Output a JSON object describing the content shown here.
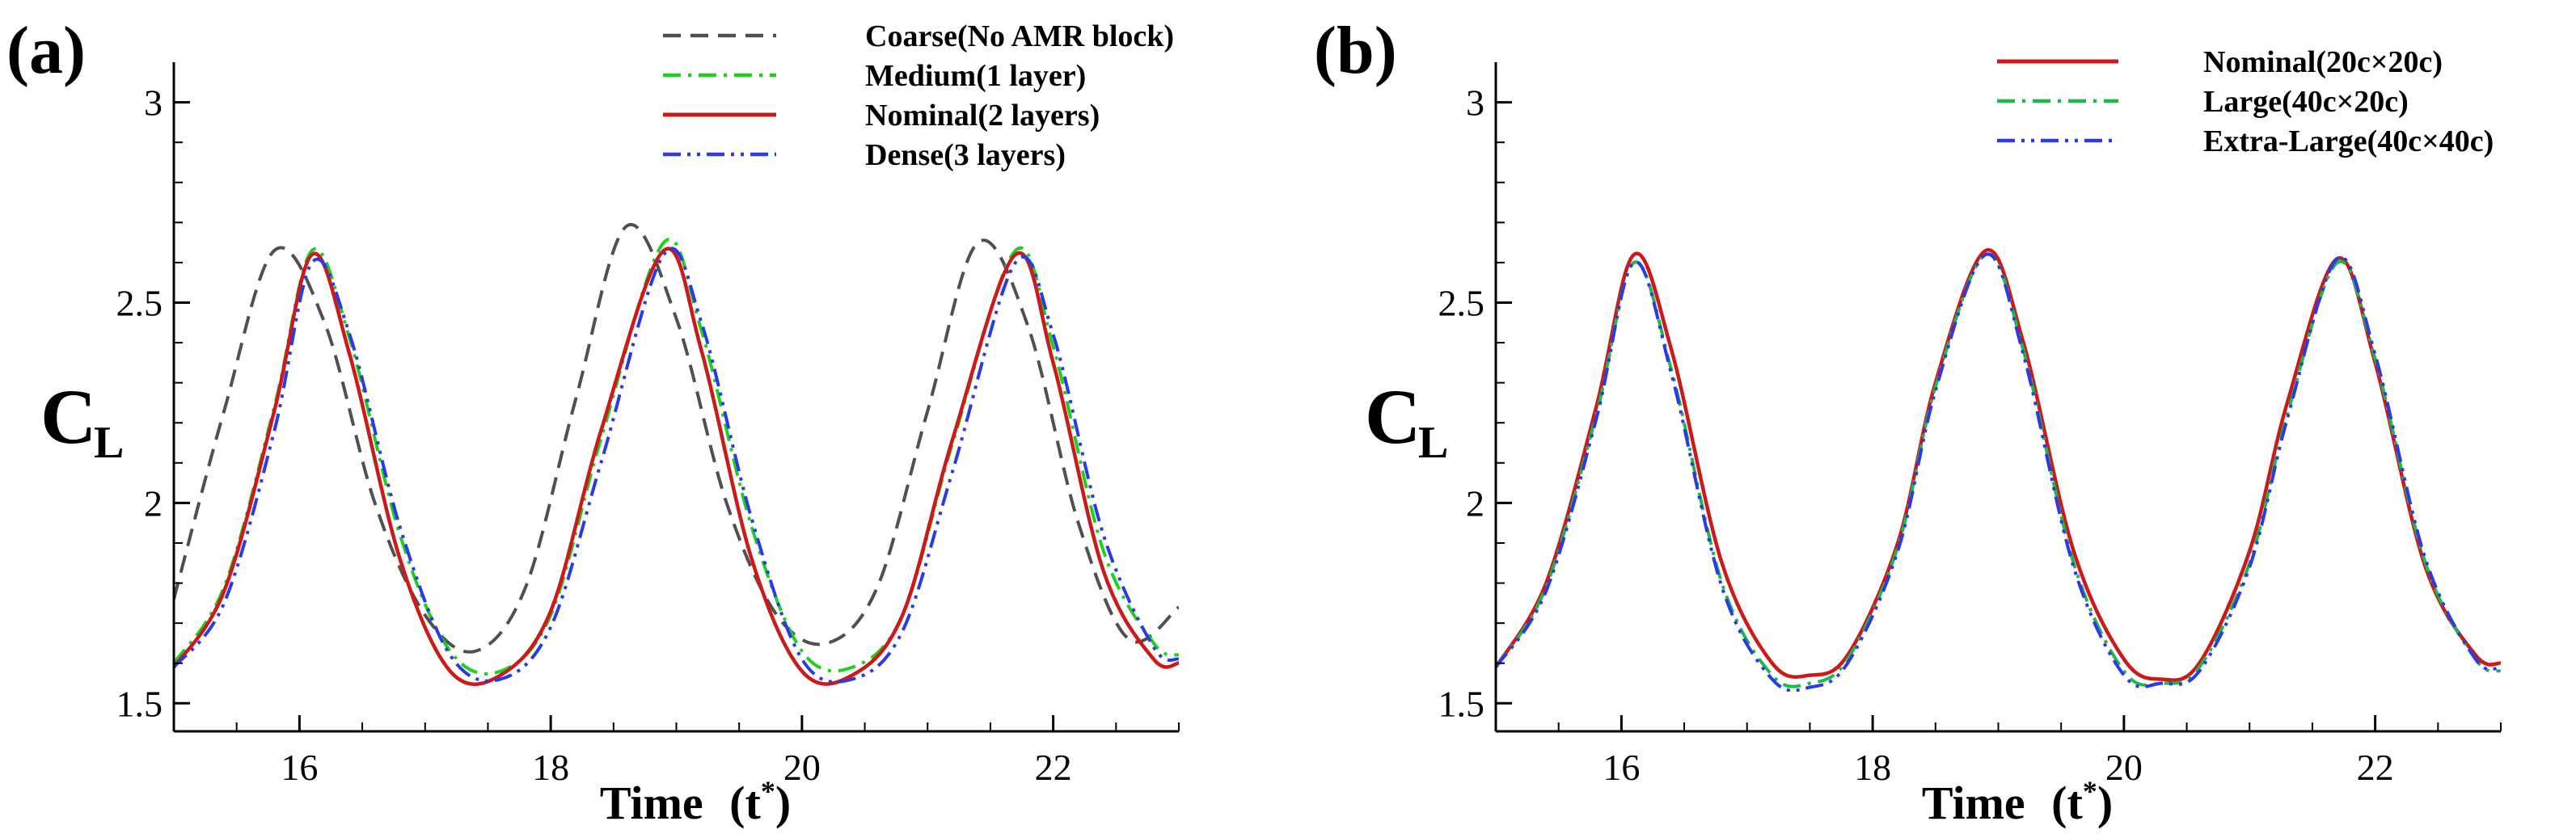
{
  "chart_data": [
    {
      "panel_label": "(a)",
      "type": "line",
      "xlabel_main": "Time",
      "xlabel_var": "(t",
      "xlabel_sup": "*",
      "xlabel_close": ")",
      "ylabel_main": "C",
      "ylabel_sub": "L",
      "xlim": [
        15,
        23
      ],
      "ylim": [
        1.43,
        3.1
      ],
      "x_ticks": [
        16,
        18,
        20,
        22
      ],
      "x_tick_labels": [
        "16",
        "18",
        "20",
        "22"
      ],
      "y_ticks": [
        1.5,
        2,
        2.5,
        3
      ],
      "y_tick_labels": [
        "1.5",
        "2",
        "2.5",
        "3"
      ],
      "legend_position": "top-right",
      "series": [
        {
          "name": "Coarse(No AMR block)",
          "color": "#505050",
          "dash": "dashed",
          "x": [
            15.0,
            15.4,
            15.8,
            16.2,
            16.6,
            17.0,
            17.4,
            17.8,
            18.2,
            18.6,
            19.0,
            19.4,
            19.8,
            20.2,
            20.6,
            21.0,
            21.4,
            21.8,
            22.2,
            22.6,
            23.0
          ],
          "y": [
            1.76,
            2.23,
            2.63,
            2.45,
            2.0,
            1.72,
            1.63,
            1.79,
            2.26,
            2.69,
            2.46,
            2.0,
            1.72,
            1.65,
            1.79,
            2.23,
            2.65,
            2.44,
            1.95,
            1.66,
            1.74
          ]
        },
        {
          "name": "Medium(1 layer)",
          "color": "#1fd01f",
          "dash": "dashdot",
          "x": [
            15.0,
            15.4,
            15.8,
            16.1,
            16.4,
            16.8,
            17.2,
            17.6,
            18.0,
            18.4,
            18.9,
            19.2,
            19.6,
            20.0,
            20.4,
            20.8,
            21.2,
            21.7,
            22.0,
            22.4,
            22.8,
            23.0
          ],
          "y": [
            1.6,
            1.79,
            2.24,
            2.63,
            2.41,
            1.92,
            1.63,
            1.58,
            1.72,
            2.16,
            2.65,
            2.43,
            1.94,
            1.63,
            1.59,
            1.72,
            2.15,
            2.63,
            2.39,
            1.88,
            1.65,
            1.62
          ]
        },
        {
          "name": "Nominal(2 layers)",
          "color": "#cc1a1a",
          "dash": "solid",
          "x": [
            15.0,
            15.4,
            15.8,
            16.1,
            16.4,
            16.8,
            17.2,
            17.6,
            18.0,
            18.4,
            18.9,
            19.2,
            19.6,
            20.0,
            20.4,
            20.8,
            21.2,
            21.7,
            22.0,
            22.4,
            22.8,
            23.0
          ],
          "y": [
            1.59,
            1.78,
            2.23,
            2.62,
            2.37,
            1.86,
            1.58,
            1.57,
            1.73,
            2.18,
            2.63,
            2.38,
            1.86,
            1.58,
            1.57,
            1.72,
            2.16,
            2.62,
            2.35,
            1.83,
            1.61,
            1.6
          ]
        },
        {
          "name": "Dense(3 layers)",
          "color": "#2a3ae6",
          "dash": "dashdotdot",
          "x": [
            15.0,
            15.4,
            15.8,
            16.1,
            16.4,
            16.8,
            17.2,
            17.6,
            18.0,
            18.4,
            18.9,
            19.2,
            19.6,
            20.0,
            20.4,
            20.8,
            21.2,
            21.7,
            22.0,
            22.4,
            22.8,
            23.0
          ],
          "y": [
            1.59,
            1.75,
            2.18,
            2.6,
            2.42,
            1.94,
            1.62,
            1.56,
            1.69,
            2.1,
            2.62,
            2.45,
            1.96,
            1.61,
            1.56,
            1.68,
            2.08,
            2.6,
            2.42,
            1.92,
            1.64,
            1.61
          ]
        }
      ]
    },
    {
      "panel_label": "(b)",
      "type": "line",
      "xlabel_main": "Time",
      "xlabel_var": "(t",
      "xlabel_sup": "*",
      "xlabel_close": ")",
      "ylabel_main": "C",
      "ylabel_sub": "L",
      "xlim": [
        15,
        23
      ],
      "ylim": [
        1.43,
        3.1
      ],
      "x_ticks": [
        16,
        18,
        20,
        22
      ],
      "x_tick_labels": [
        "16",
        "18",
        "20",
        "22"
      ],
      "y_ticks": [
        1.5,
        2,
        2.5,
        3
      ],
      "y_tick_labels": [
        "1.5",
        "2",
        "2.5",
        "3"
      ],
      "legend_position": "top-right",
      "series": [
        {
          "name": "Nominal(20c×20c)",
          "color": "#cc1a1a",
          "dash": "solid",
          "x": [
            15.0,
            15.4,
            15.8,
            16.1,
            16.4,
            16.8,
            17.2,
            17.5,
            17.8,
            18.2,
            18.5,
            18.9,
            19.2,
            19.6,
            20.0,
            20.3,
            20.6,
            21.0,
            21.3,
            21.7,
            22.0,
            22.4,
            22.8,
            23.0
          ],
          "y": [
            1.59,
            1.8,
            2.24,
            2.62,
            2.38,
            1.85,
            1.6,
            1.57,
            1.62,
            1.9,
            2.3,
            2.63,
            2.4,
            1.88,
            1.61,
            1.56,
            1.6,
            1.88,
            2.25,
            2.61,
            2.35,
            1.84,
            1.62,
            1.6
          ]
        },
        {
          "name": "Large(40c×20c)",
          "color": "#1fb84a",
          "dash": "dashdot",
          "x": [
            15.0,
            15.4,
            15.8,
            16.1,
            16.4,
            16.8,
            17.2,
            17.5,
            17.8,
            18.2,
            18.5,
            18.9,
            19.2,
            19.6,
            20.0,
            20.3,
            20.6,
            21.0,
            21.3,
            21.7,
            22.0,
            22.4,
            22.8,
            23.0
          ],
          "y": [
            1.59,
            1.79,
            2.22,
            2.6,
            2.33,
            1.8,
            1.57,
            1.55,
            1.61,
            1.89,
            2.29,
            2.62,
            2.38,
            1.85,
            1.58,
            1.55,
            1.59,
            1.85,
            2.22,
            2.6,
            2.36,
            1.85,
            1.61,
            1.58
          ]
        },
        {
          "name": "Extra-Large(40c×40c)",
          "color": "#2a3ae6",
          "dash": "dashdotdot",
          "x": [
            15.0,
            15.4,
            15.8,
            16.1,
            16.4,
            16.8,
            17.2,
            17.5,
            17.8,
            18.2,
            18.5,
            18.9,
            19.2,
            19.6,
            20.0,
            20.3,
            20.6,
            21.0,
            21.3,
            21.7,
            22.0,
            22.4,
            22.8,
            23.0
          ],
          "y": [
            1.59,
            1.78,
            2.21,
            2.6,
            2.32,
            1.79,
            1.56,
            1.54,
            1.6,
            1.88,
            2.28,
            2.62,
            2.37,
            1.84,
            1.57,
            1.55,
            1.58,
            1.84,
            2.21,
            2.61,
            2.37,
            1.86,
            1.61,
            1.59
          ]
        }
      ]
    }
  ]
}
